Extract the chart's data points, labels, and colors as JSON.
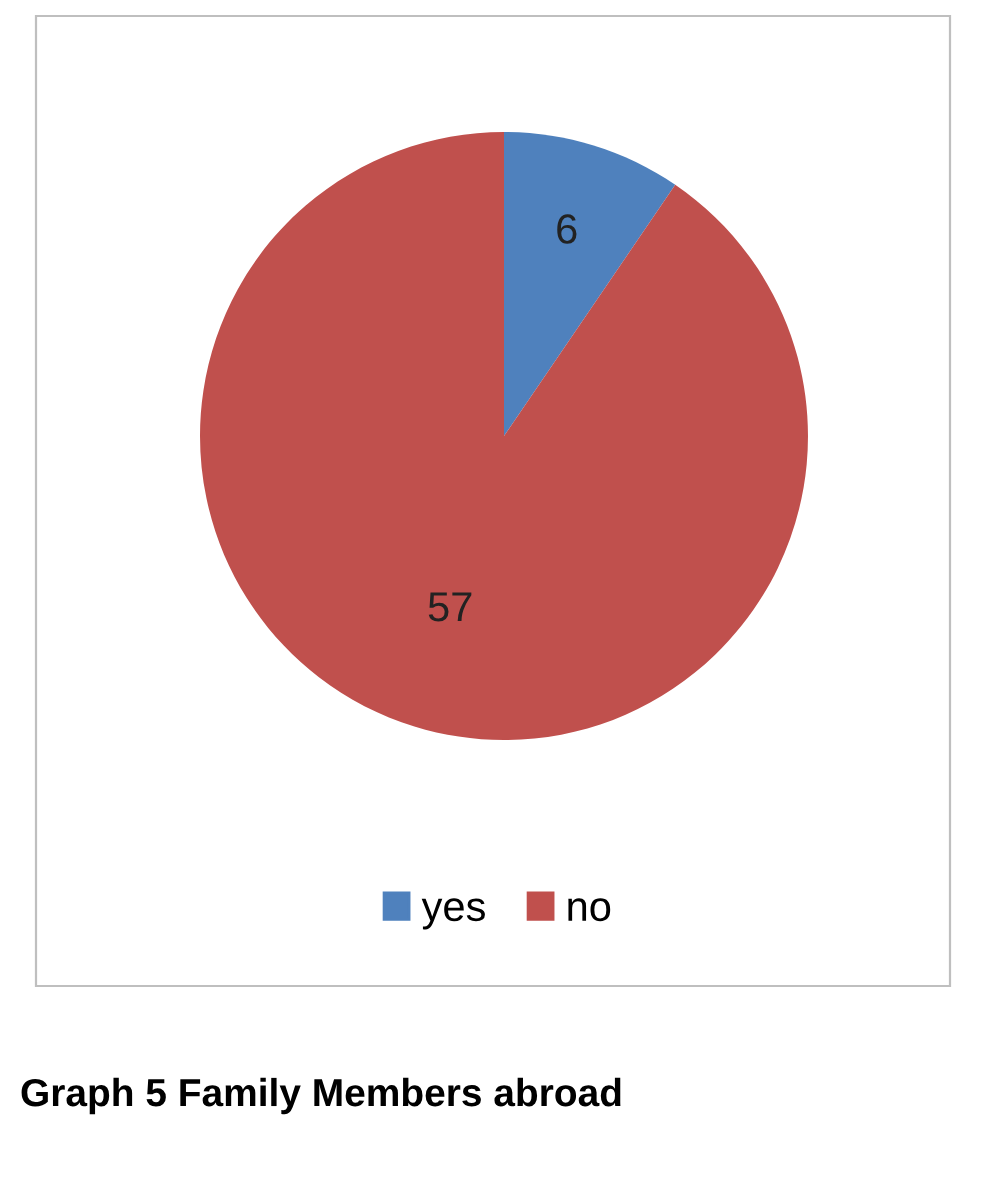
{
  "chart_data": {
    "type": "pie",
    "categories": [
      "yes",
      "no"
    ],
    "values": [
      6,
      57
    ],
    "colors": [
      "#4f81bd",
      "#c0504d"
    ],
    "data_labels": true,
    "legend": "bottom",
    "annotations": [
      "Graph 5 Family Members abroad"
    ]
  }
}
